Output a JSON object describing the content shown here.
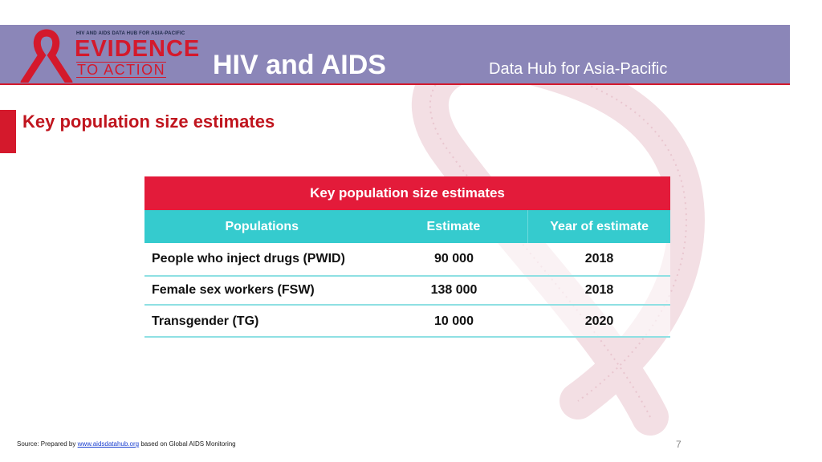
{
  "header": {
    "logo": {
      "tagline": "HIV AND AIDS DATA HUB FOR ASIA-PACIFIC",
      "line1": "EVIDENCE",
      "line2": "TO ACTION"
    },
    "title": "HIV and AIDS",
    "subtitle": "Data Hub for Asia-Pacific"
  },
  "page": {
    "title": "Key population size estimates"
  },
  "table": {
    "title": "Key population size estimates",
    "columns": [
      "Populations",
      "Estimate",
      "Year of estimate"
    ],
    "rows": [
      {
        "population": "People who inject drugs (PWID)",
        "estimate": "90 000",
        "year": "2018"
      },
      {
        "population": "Female sex workers (FSW)",
        "estimate": "138 000",
        "year": "2018"
      },
      {
        "population": "Transgender (TG)",
        "estimate": "10 000",
        "year": "2020"
      }
    ]
  },
  "footer": {
    "source_prefix": "Source: Prepared by ",
    "source_link": "www.aidsdatahub.org",
    "source_suffix": " based on Global AIDS Monitoring",
    "page_number": "7"
  },
  "colors": {
    "header_band": "#8b86b8",
    "brand_red": "#d4192c",
    "table_header_red": "#e31b3a",
    "table_header_teal": "#35cbce",
    "row_divider": "#8fe0e3"
  },
  "icons": [
    "red-ribbon-icon",
    "background-ribbon"
  ]
}
